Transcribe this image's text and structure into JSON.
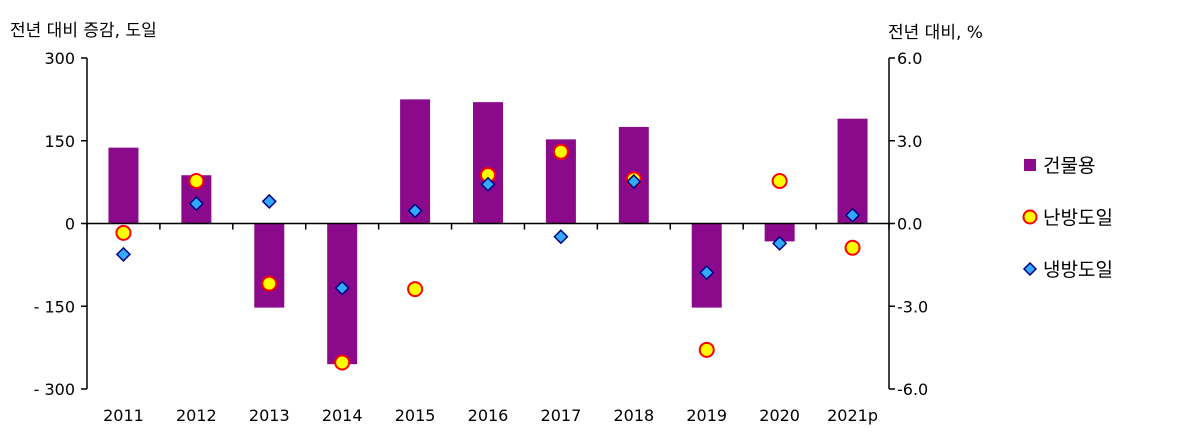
{
  "chart_data": {
    "type": "bar",
    "categories": [
      "2011",
      "2012",
      "2013",
      "2014",
      "2015",
      "2016",
      "2017",
      "2018",
      "2019",
      "2020",
      "2021p"
    ],
    "left_axis_title": "전년 대비 증감, 도일",
    "right_axis_title": "전년 대비, %",
    "left_ticks": [
      "300",
      "150",
      "0",
      "- 150",
      "- 300"
    ],
    "right_ticks": [
      "6.0",
      "3.0",
      "0.0",
      "-3.0",
      "-6.0"
    ],
    "ylim_left": [
      -300,
      300
    ],
    "ylim_right": [
      -6,
      6
    ],
    "series": [
      {
        "name": "건물용",
        "kind": "bar",
        "axis": "right",
        "color": "#8B0A8B",
        "values": [
          2.75,
          1.75,
          -3.05,
          -5.1,
          4.5,
          4.4,
          3.05,
          3.5,
          -3.05,
          -0.65,
          3.8
        ]
      },
      {
        "name": "난방도일",
        "kind": "circle",
        "axis": "left",
        "color": "#FFFF00",
        "stroke": "#FF0000",
        "values": [
          -17,
          77,
          -109,
          -252,
          -119,
          88,
          130,
          80,
          -229,
          77,
          -44
        ]
      },
      {
        "name": "냉방도일",
        "kind": "diamond",
        "axis": "left",
        "color": "#33AAFF",
        "stroke": "#000080",
        "values": [
          -56,
          36,
          40,
          -117,
          23,
          71,
          -24,
          76,
          -89,
          -36,
          15
        ]
      }
    ],
    "legend_position": "right",
    "grid": false
  }
}
